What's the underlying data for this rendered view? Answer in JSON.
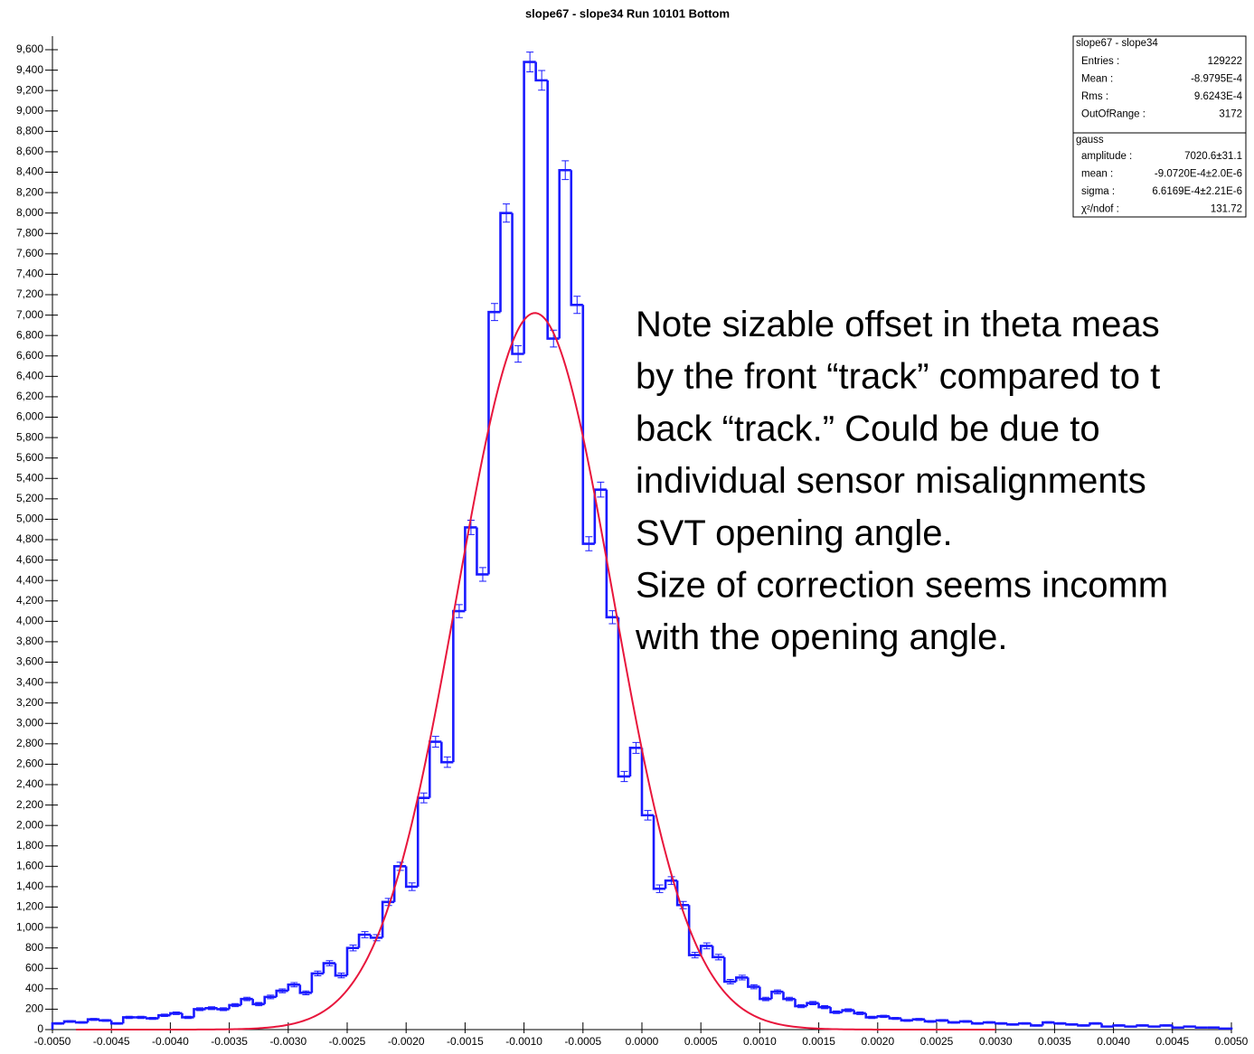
{
  "chart_data": {
    "type": "histogram",
    "title": "slope67 - slope34 Run 10101 Bottom",
    "color": "#1a1aff",
    "bins": [
      -0.005,
      -0.0049,
      -0.0048,
      -0.0047,
      -0.0046,
      -0.0045,
      -0.0044,
      -0.0043,
      -0.0042,
      -0.0041,
      -0.004,
      -0.0039,
      -0.0038,
      -0.0037,
      -0.0036,
      -0.0035,
      -0.0034,
      -0.0033,
      -0.0032,
      -0.0031,
      -0.003,
      -0.0029,
      -0.0028,
      -0.0027,
      -0.0026,
      -0.0025,
      -0.0024,
      -0.0023,
      -0.0022,
      -0.0021,
      -0.002,
      -0.0019,
      -0.0018,
      -0.0017,
      -0.0016,
      -0.0015,
      -0.0014,
      -0.0013,
      -0.0012,
      -0.0011,
      -0.001,
      -0.0009,
      -0.0008,
      -0.0007,
      -0.0006,
      -0.0005,
      -0.0004,
      -0.0003,
      -0.0002,
      -0.0001,
      0,
      0.0001,
      0.0002,
      0.0003,
      0.0004,
      0.0005,
      0.0006,
      0.0007,
      0.0008,
      0.0009,
      0.001,
      0.0011,
      0.0012,
      0.0013,
      0.0014,
      0.0015,
      0.0016,
      0.0017,
      0.0018,
      0.0019,
      0.002,
      0.0021,
      0.0022,
      0.0023,
      0.0024,
      0.0025,
      0.0026,
      0.0027,
      0.0028,
      0.0029,
      0.003,
      0.0031,
      0.0032,
      0.0033,
      0.0034,
      0.0035,
      0.0036,
      0.0037,
      0.0038,
      0.0039,
      0.004,
      0.0041,
      0.0042,
      0.0043,
      0.0044,
      0.0045,
      0.0046,
      0.0047,
      0.0048,
      0.0049,
      0.005
    ],
    "values": [
      60,
      80,
      70,
      100,
      90,
      60,
      120,
      120,
      110,
      140,
      160,
      120,
      200,
      210,
      200,
      240,
      300,
      250,
      320,
      380,
      440,
      360,
      550,
      650,
      530,
      800,
      930,
      900,
      1250,
      1600,
      1400,
      2270,
      2820,
      2620,
      4100,
      4920,
      4460,
      7030,
      8000,
      6620,
      9480,
      9300,
      6770,
      8420,
      7100,
      4760,
      5290,
      4040,
      2480,
      2760,
      2100,
      1380,
      1460,
      1220,
      730,
      820,
      710,
      470,
      510,
      420,
      300,
      370,
      300,
      230,
      260,
      220,
      170,
      190,
      160,
      120,
      130,
      110,
      90,
      100,
      80,
      90,
      70,
      80,
      60,
      70,
      60,
      50,
      60,
      40,
      70,
      60,
      50,
      40,
      60,
      30,
      40,
      30,
      40,
      30,
      40,
      20,
      30,
      20,
      20,
      10
    ],
    "errors": [
      8,
      9,
      8,
      10,
      9,
      8,
      11,
      11,
      10,
      12,
      13,
      11,
      14,
      14,
      14,
      15,
      17,
      16,
      18,
      19,
      21,
      19,
      23,
      25,
      23,
      28,
      30,
      30,
      35,
      40,
      37,
      48,
      53,
      51,
      64,
      70,
      67,
      84,
      89,
      81,
      97,
      96,
      82,
      92,
      84,
      69,
      73,
      64,
      50,
      53,
      46,
      37,
      38,
      35,
      27,
      29,
      27,
      22,
      23,
      20,
      17,
      19,
      17,
      15,
      16,
      15,
      13,
      14,
      13,
      11,
      11,
      10,
      9,
      10,
      9,
      9,
      8,
      9,
      8,
      8,
      8,
      7,
      8,
      6,
      8,
      8,
      7,
      6,
      8,
      5,
      6,
      5,
      6,
      5,
      6,
      4,
      5,
      4,
      4,
      3
    ],
    "fit": {
      "amplitude": 7020.6,
      "mean": -0.0009072,
      "sigma": 0.00066169,
      "range": [
        -0.0048,
        0.003
      ],
      "color": "#e8163c"
    },
    "xlim": [
      -0.005,
      0.005
    ],
    "xticks": [
      {
        "value": -0.005,
        "label": "-0.0050"
      },
      {
        "value": -0.0045,
        "label": "-0.0045"
      },
      {
        "value": -0.004,
        "label": "-0.0040"
      },
      {
        "value": -0.0035,
        "label": "-0.0035"
      },
      {
        "value": -0.003,
        "label": "-0.0030"
      },
      {
        "value": -0.0025,
        "label": "-0.0025"
      },
      {
        "value": -0.002,
        "label": "-0.0020"
      },
      {
        "value": -0.0015,
        "label": "-0.0015"
      },
      {
        "value": -0.001,
        "label": "-0.0010"
      },
      {
        "value": -0.0005,
        "label": "-0.0005"
      },
      {
        "value": 0,
        "label": "0.0000"
      },
      {
        "value": 0.0005,
        "label": "0.0005"
      },
      {
        "value": 0.001,
        "label": "0.0010"
      },
      {
        "value": 0.0015,
        "label": "0.0015"
      },
      {
        "value": 0.002,
        "label": "0.0020"
      },
      {
        "value": 0.0025,
        "label": "0.0025"
      },
      {
        "value": 0.003,
        "label": "0.0030"
      },
      {
        "value": 0.0035,
        "label": "0.0035"
      },
      {
        "value": 0.004,
        "label": "0.0040"
      },
      {
        "value": 0.0045,
        "label": "0.0045"
      },
      {
        "value": 0.005,
        "label": "0.0050"
      }
    ],
    "ylim": [
      0,
      9600
    ],
    "yticks": [
      0,
      200,
      400,
      600,
      800,
      {
        "value": 1000,
        "label": "1,000"
      },
      {
        "value": 1200,
        "label": "1,200"
      },
      {
        "value": 1400,
        "label": "1,400"
      },
      {
        "value": 1600,
        "label": "1,600"
      },
      {
        "value": 1800,
        "label": "1,800"
      },
      {
        "value": 2000,
        "label": "2,000"
      },
      {
        "value": 2200,
        "label": "2,200"
      },
      {
        "value": 2400,
        "label": "2,400"
      },
      {
        "value": 2600,
        "label": "2,600"
      },
      {
        "value": 2800,
        "label": "2,800"
      },
      {
        "value": 3000,
        "label": "3,000"
      },
      {
        "value": 3200,
        "label": "3,200"
      },
      {
        "value": 3400,
        "label": "3,400"
      },
      {
        "value": 3600,
        "label": "3,600"
      },
      {
        "value": 3800,
        "label": "3,800"
      },
      {
        "value": 4000,
        "label": "4,000"
      },
      {
        "value": 4200,
        "label": "4,200"
      },
      {
        "value": 4400,
        "label": "4,400"
      },
      {
        "value": 4600,
        "label": "4,600"
      },
      {
        "value": 4800,
        "label": "4,800"
      },
      {
        "value": 5000,
        "label": "5,000"
      },
      {
        "value": 5200,
        "label": "5,200"
      },
      {
        "value": 5400,
        "label": "5,400"
      },
      {
        "value": 5600,
        "label": "5,600"
      },
      {
        "value": 5800,
        "label": "5,800"
      },
      {
        "value": 6000,
        "label": "6,000"
      },
      {
        "value": 6200,
        "label": "6,200"
      },
      {
        "value": 6400,
        "label": "6,400"
      },
      {
        "value": 6600,
        "label": "6,600"
      },
      {
        "value": 6800,
        "label": "6,800"
      },
      {
        "value": 7000,
        "label": "7,000"
      },
      {
        "value": 7200,
        "label": "7,200"
      },
      {
        "value": 7400,
        "label": "7,400"
      },
      {
        "value": 7600,
        "label": "7,600"
      },
      {
        "value": 7800,
        "label": "7,800"
      },
      {
        "value": 8000,
        "label": "8,000"
      },
      {
        "value": 8200,
        "label": "8,200"
      },
      {
        "value": 8400,
        "label": "8,400"
      },
      {
        "value": 8600,
        "label": "8,600"
      },
      {
        "value": 8800,
        "label": "8,800"
      },
      {
        "value": 9000,
        "label": "9,000"
      },
      {
        "value": 9200,
        "label": "9,200"
      },
      {
        "value": 9400,
        "label": "9,400"
      },
      {
        "value": 9600,
        "label": "9,600"
      }
    ],
    "stats": {
      "title": "slope67 - slope34",
      "rows": [
        [
          "Entries :",
          "129222"
        ],
        [
          "Mean :",
          "-8.9795E-4"
        ],
        [
          "Rms :",
          "9.6243E-4"
        ],
        [
          "OutOfRange :",
          "3172"
        ]
      ]
    },
    "fit_stats": {
      "title": "gauss",
      "rows": [
        [
          "amplitude :",
          "7020.6±31.1"
        ],
        [
          "mean :",
          "-9.0720E-4±2.0E-6"
        ],
        [
          "sigma :",
          "6.6169E-4±2.21E-6"
        ],
        [
          "χ²/ndof :",
          "131.72"
        ]
      ]
    },
    "annotation": [
      "Note sizable offset in theta meas",
      "by the front “track” compared to t",
      "back “track.” Could be due to",
      "individual sensor misalignments",
      "SVT opening angle.",
      "Size of correction seems incomm",
      "with the opening angle."
    ]
  }
}
